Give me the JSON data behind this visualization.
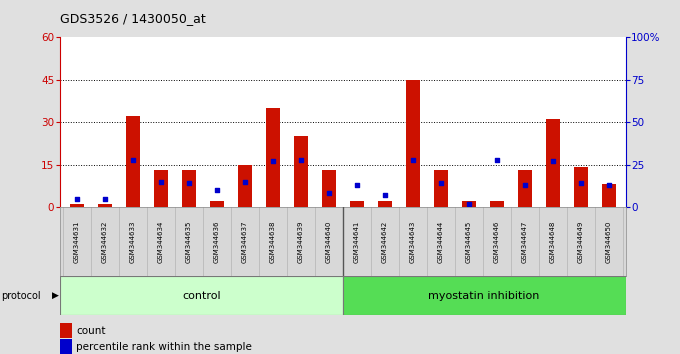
{
  "title": "GDS3526 / 1430050_at",
  "samples": [
    "GSM344631",
    "GSM344632",
    "GSM344633",
    "GSM344634",
    "GSM344635",
    "GSM344636",
    "GSM344637",
    "GSM344638",
    "GSM344639",
    "GSM344640",
    "GSM344641",
    "GSM344642",
    "GSM344643",
    "GSM344644",
    "GSM344645",
    "GSM344646",
    "GSM344647",
    "GSM344648",
    "GSM344649",
    "GSM344650"
  ],
  "count": [
    1,
    1,
    32,
    13,
    13,
    2,
    15,
    35,
    25,
    13,
    2,
    2,
    45,
    13,
    2,
    2,
    13,
    31,
    14,
    8
  ],
  "percentile": [
    5,
    5,
    28,
    15,
    14,
    10,
    15,
    27,
    28,
    8,
    13,
    7,
    28,
    14,
    2,
    28,
    13,
    27,
    14,
    13
  ],
  "left_ylim": [
    0,
    60
  ],
  "right_ylim": [
    0,
    100
  ],
  "left_yticks": [
    0,
    15,
    30,
    45,
    60
  ],
  "right_yticks": [
    0,
    25,
    50,
    75,
    100
  ],
  "left_color": "#cc0000",
  "right_color": "#0000cc",
  "bar_color": "#cc1100",
  "dot_color": "#0000cc",
  "bg_color": "#e0e0e0",
  "plot_bg": "#ffffff",
  "control_color": "#ccffcc",
  "myostatin_color": "#55dd55",
  "control_label": "control",
  "myostatin_label": "myostatin inhibition",
  "protocol_label": "protocol",
  "legend_count": "count",
  "legend_pct": "percentile rank within the sample",
  "n_control": 10,
  "n_myostatin": 10,
  "grid_yticks": [
    15,
    30,
    45
  ],
  "n_samples": 20
}
